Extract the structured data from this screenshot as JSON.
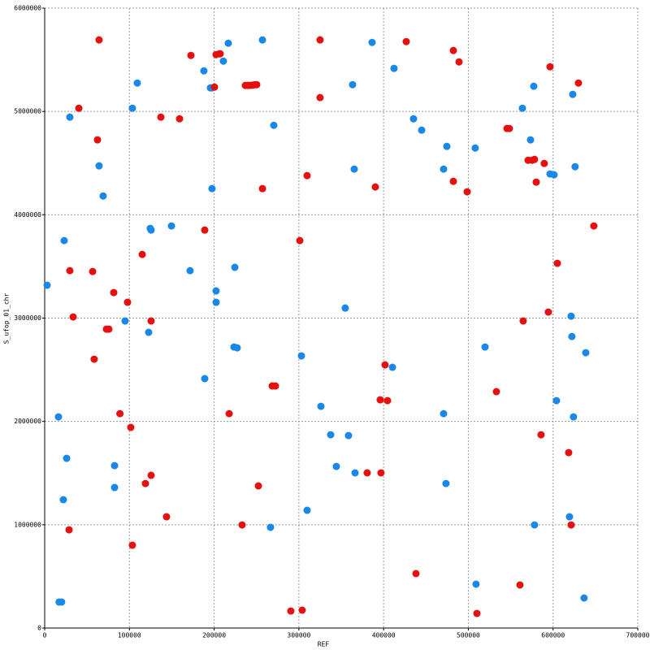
{
  "chart_data": {
    "type": "scatter",
    "xlabel": "REF",
    "ylabel": "S_ufop_01_chr",
    "xlim": [
      0,
      700000
    ],
    "ylim": [
      0,
      6000000
    ],
    "xticks": [
      0,
      100000,
      200000,
      300000,
      400000,
      500000,
      600000,
      700000
    ],
    "yticks": [
      0,
      1000000,
      2000000,
      3000000,
      4000000,
      5000000,
      6000000
    ],
    "grid": true,
    "series": [
      {
        "color": "#1a88e6",
        "x": [
          2900,
          16300,
          23000,
          25900,
          22000,
          17000,
          20000,
          29700,
          64200,
          69000,
          82500,
          82500,
          94900,
          103500,
          109300,
          122700,
          124600,
          125600,
          149600,
          171600,
          187900,
          188900,
          195600,
          197500,
          197500,
          202300,
          202300,
          210900,
          216700,
          224400,
          223400,
          227200,
          257000,
          266500,
          270400,
          303000,
          309700,
          326000,
          337500,
          344200,
          354700,
          358600,
          363400,
          365300,
          366300,
          386400,
          412300,
          410400,
          435300,
          444900,
          470800,
          470800,
          474600,
          473600,
          508100,
          509100,
          519700,
          563800,
          573400,
          577200,
          578100,
          596400,
          601200,
          604000,
          621300,
          622200,
          623200,
          626000,
          624100,
          619400,
          638600,
          636600
        ],
        "values": [
          3318000,
          2044000,
          3750000,
          1643000,
          1242000,
          252000,
          252000,
          4945000,
          4473000,
          4182000,
          1572000,
          1360000,
          2972000,
          5031000,
          5275000,
          2862000,
          3868000,
          3852000,
          3892000,
          3459000,
          5393000,
          2414000,
          5228000,
          5228000,
          4253000,
          3263000,
          3153000,
          5487000,
          5660000,
          3491000,
          2720000,
          2712000,
          5692000,
          975000,
          4866000,
          2634000,
          1140000,
          2146000,
          1871000,
          1564000,
          3097000,
          1863000,
          5259000,
          4442000,
          1502000,
          5668000,
          5417000,
          2524000,
          4929000,
          4819000,
          4442000,
          2075000,
          4662000,
          1399000,
          4646000,
          425000,
          2720000,
          5031000,
          4725000,
          5244000,
          998000,
          4395000,
          4387000,
          2201000,
          3019000,
          2822000,
          5165000,
          4465000,
          2044000,
          1077000,
          2665000,
          291000
        ]
      },
      {
        "color": "#e61010",
        "x": [
          64200,
          40300,
          62300,
          29700,
          33600,
          56600,
          58400,
          72900,
          75700,
          81500,
          97800,
          88800,
          101600,
          28800,
          103500,
          115100,
          125600,
          118900,
          125600,
          137100,
          143800,
          159200,
          172600,
          188900,
          200400,
          202300,
          206100,
          207100,
          217700,
          233000,
          236800,
          239700,
          242600,
          245500,
          248400,
          250200,
          252200,
          257000,
          268500,
          272300,
          290500,
          303900,
          301100,
          309700,
          325000,
          325000,
          380600,
          390200,
          396000,
          396900,
          401700,
          404600,
          426700,
          438200,
          482300,
          482300,
          489000,
          498600,
          510100,
          533100,
          545600,
          548400,
          560900,
          564700,
          570500,
          575300,
          578100,
          580100,
          585800,
          589600,
          594400,
          596400,
          605000,
          618400,
          621300,
          629900,
          648100
        ],
        "values": [
          5692000,
          5031000,
          4725000,
          3459000,
          3011000,
          3451000,
          2602000,
          2893000,
          2893000,
          3247000,
          3153000,
          2075000,
          1942000,
          951000,
          802000,
          3616000,
          2972000,
          1399000,
          1478000,
          4945000,
          1077000,
          4929000,
          5542000,
          3852000,
          5236000,
          5550000,
          5558000,
          5558000,
          2075000,
          998000,
          5252000,
          5252000,
          5252000,
          5255000,
          5259000,
          5259000,
          1376000,
          4253000,
          2343000,
          2343000,
          165000,
          173000,
          3750000,
          4379000,
          5692000,
          5134000,
          1502000,
          4269000,
          2209000,
          1502000,
          2547000,
          2201000,
          5676000,
          527000,
          5590000,
          4324000,
          5479000,
          4222000,
          142000,
          2288000,
          4835000,
          4835000,
          417000,
          2972000,
          4528000,
          4528000,
          4536000,
          4316000,
          1871000,
          4497000,
          3058000,
          5432000,
          3530000,
          1698000,
          998000,
          5275000,
          3892000
        ]
      }
    ]
  }
}
